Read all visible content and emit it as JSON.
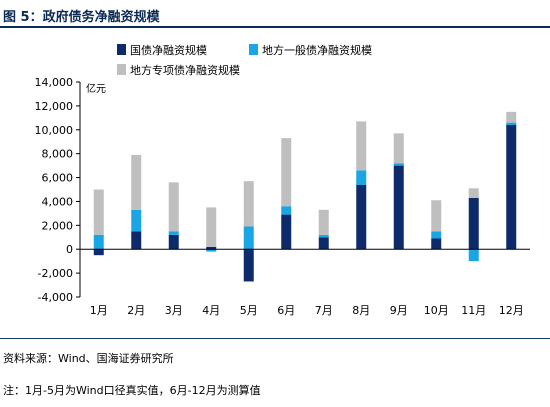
{
  "figure_title": "图 5：政府债务净融资规模",
  "source": "资料来源：Wind、国海证券研究所",
  "note": "注：1月-5月为Wind口径真实值，6月-12月为测算值",
  "chart_data": {
    "type": "bar",
    "stacked": true,
    "title": "",
    "xlabel": "",
    "ylabel": "亿元",
    "ylim": [
      -4000,
      14000
    ],
    "yticks": [
      -4000,
      -2000,
      0,
      2000,
      4000,
      6000,
      8000,
      10000,
      12000,
      14000
    ],
    "ytick_labels": [
      "-4,000",
      "-2,000",
      "0",
      "2,000",
      "4,000",
      "6,000",
      "8,000",
      "10,000",
      "12,000",
      "14,000"
    ],
    "grid": false,
    "legend_position": "top",
    "categories": [
      "1月",
      "2月",
      "3月",
      "4月",
      "5月",
      "6月",
      "7月",
      "8月",
      "9月",
      "10月",
      "11月",
      "12月"
    ],
    "series": [
      {
        "name": "国债净融资规模",
        "color": "#0d2a6b",
        "values": [
          -500,
          1500,
          1200,
          200,
          -2700,
          2900,
          1000,
          5400,
          7000,
          900,
          4300,
          10400
        ]
      },
      {
        "name": "地方一般债净融资规模",
        "color": "#1aa6e4",
        "values": [
          1200,
          1800,
          300,
          -200,
          1900,
          700,
          200,
          1200,
          200,
          600,
          -1000,
          200
        ]
      },
      {
        "name": "地方专项债净融资规模",
        "color": "#bfbfbf",
        "values": [
          3800,
          4600,
          4100,
          3300,
          3800,
          5700,
          2100,
          4100,
          2500,
          2600,
          800,
          900
        ]
      }
    ]
  }
}
